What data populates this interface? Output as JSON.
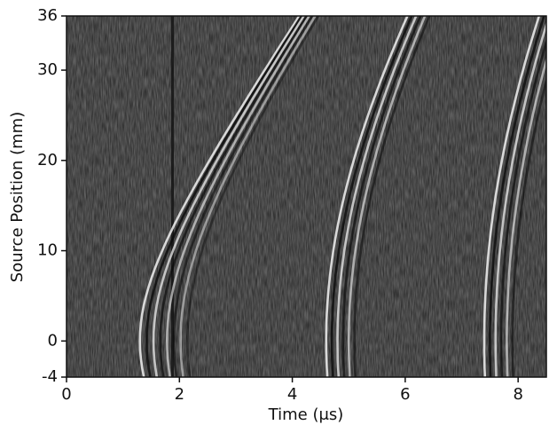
{
  "chart_data": {
    "type": "image",
    "x_label": "Time (μs)",
    "y_label": "Source Position (mm)",
    "xlim": [
      0,
      8.5
    ],
    "ylim": [
      -4,
      36
    ],
    "xticks": [
      0,
      2,
      4,
      6,
      8
    ],
    "yticks": [
      -4,
      0,
      10,
      20,
      30,
      36
    ]
  }
}
